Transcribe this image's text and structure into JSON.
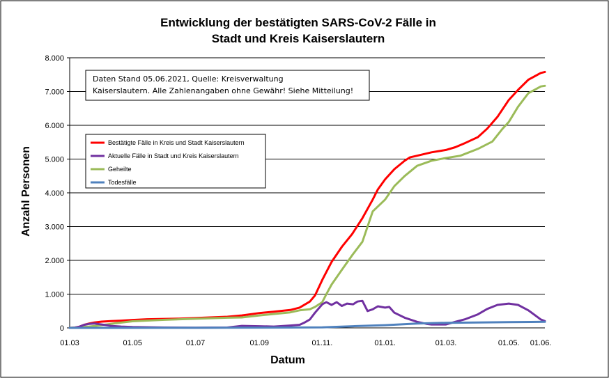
{
  "chart_data": {
    "type": "line",
    "title_lines": [
      "Entwicklung der bestätigten SARS-CoV-2 Fälle in",
      "Stadt und Kreis Kaiserslautern"
    ],
    "xlabel": "Datum",
    "ylabel": "Anzahl Personen",
    "ylim": [
      0,
      8000
    ],
    "y_ticks": [
      0,
      1000,
      2000,
      3000,
      4000,
      5000,
      6000,
      7000,
      8000
    ],
    "y_tick_labels": [
      "0",
      "1.000",
      "2.000",
      "3.000",
      "4.000",
      "5.000",
      "6.000",
      "7.000",
      "8.000"
    ],
    "x_range": [
      "2020-03-01",
      "2021-06-05"
    ],
    "x_ticks": [
      {
        "date": "2020-03-01",
        "label": "01.03"
      },
      {
        "date": "2020-05-01",
        "label": "01.05"
      },
      {
        "date": "2020-07-01",
        "label": "01.07"
      },
      {
        "date": "2020-09-01",
        "label": "01.09"
      },
      {
        "date": "2020-11-01",
        "label": "01.11."
      },
      {
        "date": "2021-01-01",
        "label": "01.01."
      },
      {
        "date": "2021-03-01",
        "label": "01.03."
      },
      {
        "date": "2021-05-01",
        "label": "01.05."
      },
      {
        "date": "2021-06-01",
        "label": "01.06."
      }
    ],
    "grid": "horizontal",
    "annotation": [
      "Daten Stand 05.06.2021, Quelle: Kreisverwaltung",
      "Kaiserslautern. Alle Zahlenangaben ohne Gewähr! Siehe Mitteilung!"
    ],
    "legend_position": "upper-left",
    "series": [
      {
        "name": "Bestätigte Fälle in Kreis und Stadt Kaiserslautern",
        "color": "#ff0000",
        "points": [
          [
            "2020-03-01",
            0
          ],
          [
            "2020-03-05",
            5
          ],
          [
            "2020-03-10",
            30
          ],
          [
            "2020-03-15",
            90
          ],
          [
            "2020-03-20",
            130
          ],
          [
            "2020-03-25",
            160
          ],
          [
            "2020-04-01",
            185
          ],
          [
            "2020-04-10",
            200
          ],
          [
            "2020-04-20",
            215
          ],
          [
            "2020-05-01",
            235
          ],
          [
            "2020-05-15",
            255
          ],
          [
            "2020-06-01",
            265
          ],
          [
            "2020-06-15",
            275
          ],
          [
            "2020-07-01",
            290
          ],
          [
            "2020-07-15",
            310
          ],
          [
            "2020-08-01",
            330
          ],
          [
            "2020-08-15",
            370
          ],
          [
            "2020-09-01",
            440
          ],
          [
            "2020-09-15",
            480
          ],
          [
            "2020-10-01",
            530
          ],
          [
            "2020-10-10",
            600
          ],
          [
            "2020-10-20",
            780
          ],
          [
            "2020-10-25",
            960
          ],
          [
            "2020-11-01",
            1420
          ],
          [
            "2020-11-10",
            1950
          ],
          [
            "2020-11-20",
            2400
          ],
          [
            "2020-11-30",
            2780
          ],
          [
            "2020-12-10",
            3250
          ],
          [
            "2020-12-20",
            3800
          ],
          [
            "2020-12-25",
            4100
          ],
          [
            "2021-01-01",
            4400
          ],
          [
            "2021-01-10",
            4700
          ],
          [
            "2021-01-20",
            4950
          ],
          [
            "2021-01-25",
            5050
          ],
          [
            "2021-02-01",
            5100
          ],
          [
            "2021-02-15",
            5200
          ],
          [
            "2021-03-01",
            5270
          ],
          [
            "2021-03-10",
            5350
          ],
          [
            "2021-03-20",
            5480
          ],
          [
            "2021-04-01",
            5650
          ],
          [
            "2021-04-10",
            5900
          ],
          [
            "2021-04-20",
            6250
          ],
          [
            "2021-05-01",
            6750
          ],
          [
            "2021-05-10",
            7050
          ],
          [
            "2021-05-20",
            7350
          ],
          [
            "2021-06-01",
            7550
          ],
          [
            "2021-06-05",
            7580
          ]
        ]
      },
      {
        "name": "Aktuelle Fälle in Stadt und Kreis Kaiserslautern",
        "color": "#7030a0",
        "points": [
          [
            "2020-03-01",
            0
          ],
          [
            "2020-03-05",
            5
          ],
          [
            "2020-03-10",
            30
          ],
          [
            "2020-03-15",
            90
          ],
          [
            "2020-03-20",
            120
          ],
          [
            "2020-03-25",
            130
          ],
          [
            "2020-04-01",
            100
          ],
          [
            "2020-04-10",
            60
          ],
          [
            "2020-04-20",
            40
          ],
          [
            "2020-05-01",
            25
          ],
          [
            "2020-06-01",
            10
          ],
          [
            "2020-07-01",
            5
          ],
          [
            "2020-08-01",
            10
          ],
          [
            "2020-08-15",
            60
          ],
          [
            "2020-09-01",
            50
          ],
          [
            "2020-09-15",
            40
          ],
          [
            "2020-10-01",
            70
          ],
          [
            "2020-10-10",
            90
          ],
          [
            "2020-10-15",
            160
          ],
          [
            "2020-10-20",
            250
          ],
          [
            "2020-10-25",
            450
          ],
          [
            "2020-11-01",
            700
          ],
          [
            "2020-11-05",
            760
          ],
          [
            "2020-11-10",
            680
          ],
          [
            "2020-11-15",
            760
          ],
          [
            "2020-11-20",
            650
          ],
          [
            "2020-11-25",
            720
          ],
          [
            "2020-12-01",
            700
          ],
          [
            "2020-12-05",
            780
          ],
          [
            "2020-12-10",
            800
          ],
          [
            "2020-12-15",
            500
          ],
          [
            "2020-12-20",
            550
          ],
          [
            "2020-12-25",
            640
          ],
          [
            "2021-01-01",
            600
          ],
          [
            "2021-01-05",
            620
          ],
          [
            "2021-01-10",
            450
          ],
          [
            "2021-01-20",
            300
          ],
          [
            "2021-02-01",
            180
          ],
          [
            "2021-02-10",
            120
          ],
          [
            "2021-02-15",
            100
          ],
          [
            "2021-03-01",
            100
          ],
          [
            "2021-03-10",
            180
          ],
          [
            "2021-03-20",
            260
          ],
          [
            "2021-04-01",
            400
          ],
          [
            "2021-04-10",
            560
          ],
          [
            "2021-04-20",
            680
          ],
          [
            "2021-05-01",
            720
          ],
          [
            "2021-05-10",
            680
          ],
          [
            "2021-05-20",
            520
          ],
          [
            "2021-06-01",
            250
          ],
          [
            "2021-06-05",
            200
          ]
        ]
      },
      {
        "name": "Geheilte",
        "color": "#9bbb59",
        "points": [
          [
            "2020-03-01",
            0
          ],
          [
            "2020-03-20",
            40
          ],
          [
            "2020-04-01",
            80
          ],
          [
            "2020-04-15",
            140
          ],
          [
            "2020-05-01",
            195
          ],
          [
            "2020-06-01",
            240
          ],
          [
            "2020-07-01",
            270
          ],
          [
            "2020-08-01",
            300
          ],
          [
            "2020-08-15",
            310
          ],
          [
            "2020-09-01",
            370
          ],
          [
            "2020-10-01",
            460
          ],
          [
            "2020-10-10",
            520
          ],
          [
            "2020-10-20",
            550
          ],
          [
            "2020-10-25",
            620
          ],
          [
            "2020-11-01",
            760
          ],
          [
            "2020-11-05",
            1000
          ],
          [
            "2020-11-10",
            1280
          ],
          [
            "2020-11-20",
            1720
          ],
          [
            "2020-11-30",
            2150
          ],
          [
            "2020-12-10",
            2550
          ],
          [
            "2020-12-15",
            3000
          ],
          [
            "2020-12-20",
            3450
          ],
          [
            "2021-01-01",
            3800
          ],
          [
            "2021-01-10",
            4200
          ],
          [
            "2021-01-20",
            4500
          ],
          [
            "2021-02-01",
            4800
          ],
          [
            "2021-02-15",
            4950
          ],
          [
            "2021-03-01",
            5030
          ],
          [
            "2021-03-15",
            5100
          ],
          [
            "2021-04-01",
            5300
          ],
          [
            "2021-04-15",
            5520
          ],
          [
            "2021-04-25",
            5900
          ],
          [
            "2021-05-01",
            6100
          ],
          [
            "2021-05-10",
            6550
          ],
          [
            "2021-05-20",
            6950
          ],
          [
            "2021-06-01",
            7150
          ],
          [
            "2021-06-05",
            7170
          ]
        ]
      },
      {
        "name": "Todesfälle",
        "color": "#4f81bd",
        "points": [
          [
            "2020-03-01",
            0
          ],
          [
            "2020-04-01",
            1
          ],
          [
            "2020-07-01",
            3
          ],
          [
            "2020-10-01",
            10
          ],
          [
            "2020-11-01",
            15
          ],
          [
            "2020-12-01",
            50
          ],
          [
            "2021-01-01",
            80
          ],
          [
            "2021-02-01",
            130
          ],
          [
            "2021-03-01",
            150
          ],
          [
            "2021-04-01",
            160
          ],
          [
            "2021-05-01",
            170
          ],
          [
            "2021-06-05",
            180
          ]
        ]
      }
    ]
  }
}
